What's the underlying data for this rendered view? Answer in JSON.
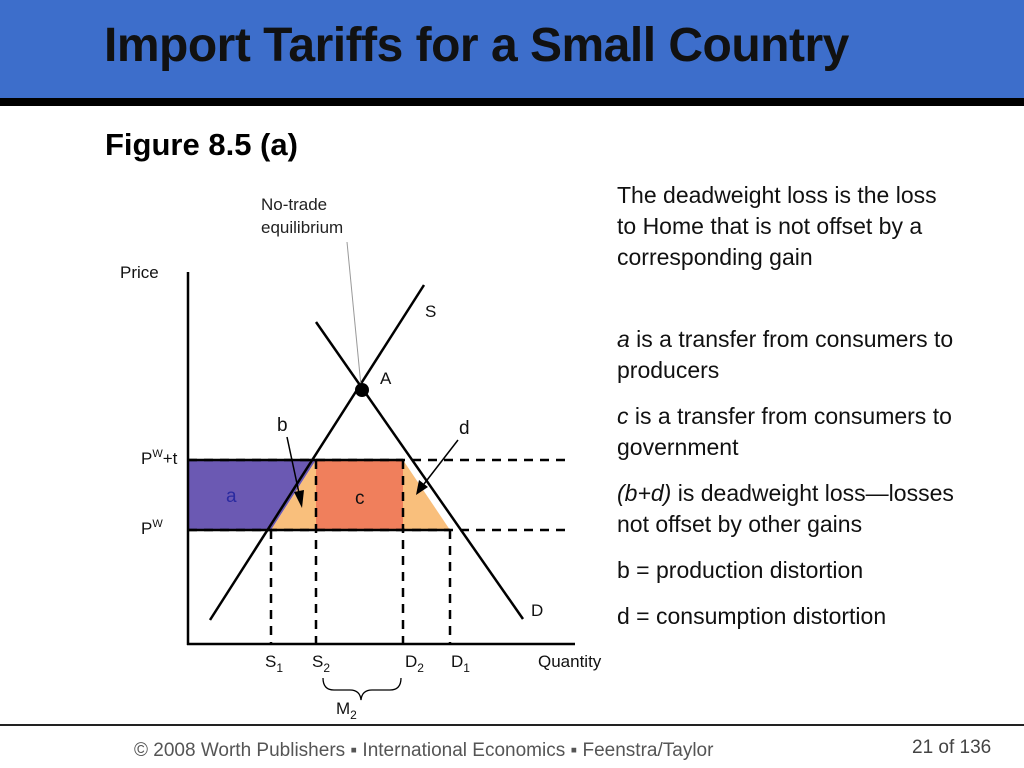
{
  "slide": {
    "title": "Import Tariffs for a Small Country",
    "figure_label": "Figure 8.5 (a)"
  },
  "diagram": {
    "annotation_line1": "No-trade",
    "annotation_line2": "equilibrium",
    "y_axis_label": "Price",
    "x_axis_label": "Quantity",
    "supply_label": "S",
    "demand_label": "D",
    "equilibrium_label": "A",
    "price_tariff_label": "P",
    "price_tariff_sup": "W",
    "price_tariff_suffix": "+t",
    "price_world_label": "P",
    "price_world_sup": "W",
    "area_a": "a",
    "area_b": "b",
    "area_c": "c",
    "area_d": "d",
    "s1": "S",
    "s1_sub": "1",
    "s2": "S",
    "s2_sub": "2",
    "d2": "D",
    "d2_sub": "2",
    "d1": "D",
    "d1_sub": "1",
    "m2": "M",
    "m2_sub": "2",
    "colors": {
      "area_a": "#6b59b3",
      "area_c": "#f07f5c",
      "area_bd": "#f9bf7c"
    }
  },
  "explanation": {
    "para1": "The deadweight loss is the loss to Home that is not offset by a corresponding gain",
    "para2_italic": "a",
    "para2_rest": " is a transfer from consumers to producers",
    "para3_italic": "c",
    "para3_rest": " is a transfer from consumers to government",
    "para4_italic": "(b+d)",
    "para4_rest": " is deadweight loss—losses not offset by other gains",
    "para5": "b = production distortion",
    "para6": "d = consumption distortion"
  },
  "footer": {
    "credit": "© 2008 Worth Publishers ▪ International Economics ▪ Feenstra/Taylor",
    "page": "21 of 136"
  }
}
